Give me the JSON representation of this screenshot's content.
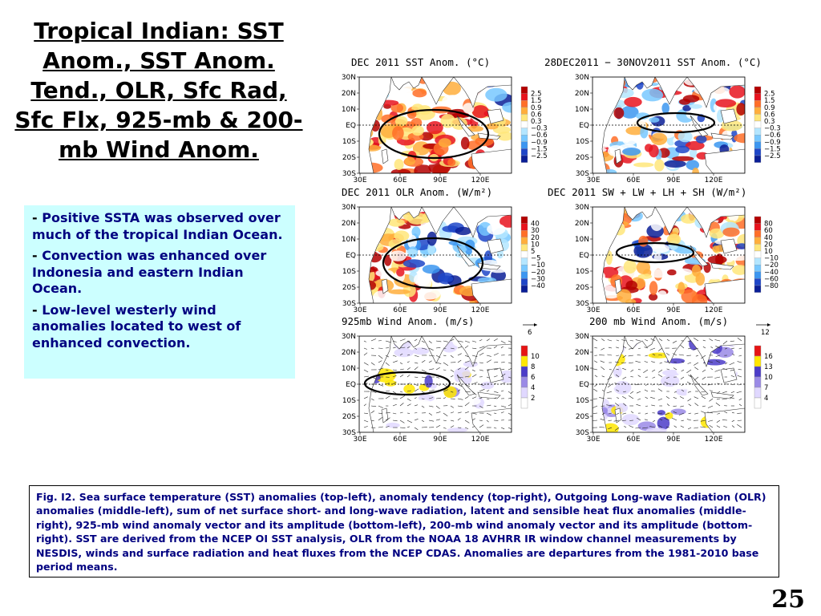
{
  "title": "Tropical Indian: SST Anom., SST Anom. Tend., OLR, Sfc Rad, Sfc Flx, 925-mb & 200-mb Wind Anom.",
  "bullets": [
    {
      "dash": "- ",
      "text": "Positive SSTA was observed over much of the tropical Indian Ocean."
    },
    {
      "dash": "- ",
      "text": "Convection was enhanced over Indonesia and eastern Indian Ocean."
    },
    {
      "dash": "- ",
      "text": "Low-level westerly wind anomalies located to west of enhanced convection."
    }
  ],
  "axis": {
    "lat_labels": [
      "30N",
      "20N",
      "10N",
      "EQ",
      "10S",
      "20S",
      "30S"
    ],
    "lon_labels": [
      "30E",
      "60E",
      "90E",
      "120E"
    ]
  },
  "panels": {
    "sst": {
      "title": "DEC 2011 SST Anom. (°C)",
      "colorbar": [
        "2.5",
        "1.5",
        "0.9",
        "0.6",
        "0.3",
        "−0.3",
        "−0.6",
        "−0.9",
        "−1.5",
        "−2.5"
      ]
    },
    "sst_tend": {
      "title": "28DEC2011 − 30NOV2011 SST Anom. (°C)",
      "colorbar": [
        "2.5",
        "1.5",
        "0.9",
        "0.6",
        "0.3",
        "−0.3",
        "−0.6",
        "−0.9",
        "−1.5",
        "−2.5"
      ]
    },
    "olr": {
      "title": "DEC 2011 OLR Anom. (W/m²)",
      "colorbar": [
        "40",
        "30",
        "20",
        "10",
        "5",
        "−5",
        "−10",
        "−20",
        "−30",
        "−40"
      ]
    },
    "flux": {
      "title": "DEC 2011 SW + LW + LH + SH (W/m²)",
      "colorbar": [
        "80",
        "60",
        "40",
        "20",
        "10",
        "−10",
        "−20",
        "−40",
        "−60",
        "−80"
      ]
    },
    "wind925": {
      "title": "925mb Wind Anom. (m/s)",
      "ref": "6",
      "colorbar": [
        "10",
        "8",
        "6",
        "4",
        "2"
      ]
    },
    "wind200": {
      "title": "200 mb Wind Anom. (m/s)",
      "ref": "12",
      "colorbar": [
        "16",
        "13",
        "10",
        "7",
        "4"
      ]
    }
  },
  "colors": {
    "diverging": [
      "#b40000",
      "#e8141e",
      "#ff6e28",
      "#ffae3c",
      "#ffe67a",
      "#ffffff",
      "#b4e6ff",
      "#78c8ff",
      "#3c96f0",
      "#1e46c8",
      "#0a1e96"
    ],
    "wind": [
      "#ffffff",
      "#e0d8ff",
      "#9a8ae6",
      "#4b3cc8",
      "#ffe600",
      "#e61414"
    ],
    "land": "#ffffff",
    "ellipse": "#000000"
  },
  "caption": "Fig. I2. Sea surface temperature (SST) anomalies (top-left), anomaly tendency (top-right), Outgoing Long-wave Radiation (OLR) anomalies (middle-left), sum of net surface short- and long-wave radiation, latent and sensible heat flux anomalies (middle-right), 925-mb wind anomaly vector and its amplitude (bottom-left), 200-mb wind anomaly vector and its amplitude  (bottom-right). SST are derived from the NCEP OI SST analysis, OLR from the NOAA 18 AVHRR IR window channel measurements by NESDIS, winds and surface radiation and heat fluxes from the NCEP CDAS. Anomalies are  departures from the 1981-2010 base period means.",
  "page_number": "25"
}
